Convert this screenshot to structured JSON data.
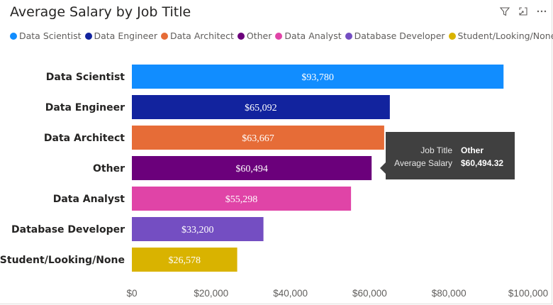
{
  "title": "Average Salary by Job Title",
  "toolbar": {
    "icons": [
      "filter-icon",
      "focus-mode-icon",
      "more-options-icon"
    ]
  },
  "legend": [
    {
      "label": "Data Scientist",
      "color": "#118DFF"
    },
    {
      "label": "Data Engineer",
      "color": "#12239E"
    },
    {
      "label": "Data Architect",
      "color": "#E66C37"
    },
    {
      "label": "Other",
      "color": "#6B007B"
    },
    {
      "label": "Data Analyst",
      "color": "#E044A7"
    },
    {
      "label": "Database Developer",
      "color": "#744EC2"
    },
    {
      "label": "Student/Looking/None",
      "color": "#D9B300"
    }
  ],
  "chart_data": {
    "type": "bar",
    "orientation": "horizontal",
    "title": "Average Salary by Job Title",
    "categories": [
      "Data Scientist",
      "Data Engineer",
      "Data Architect",
      "Other",
      "Data Analyst",
      "Database Developer",
      "Student/Looking/None"
    ],
    "values": [
      93780,
      65092,
      63667,
      60494,
      55298,
      33200,
      26578
    ],
    "data_labels": [
      "$93,780",
      "$65,092",
      "$63,667",
      "$60,494",
      "$55,298",
      "$33,200",
      "$26,578"
    ],
    "colors": [
      "#118DFF",
      "#12239E",
      "#E66C37",
      "#6B007B",
      "#E044A7",
      "#744EC2",
      "#D9B300"
    ],
    "xlim": [
      0,
      100000
    ],
    "x_ticks": [
      0,
      20000,
      40000,
      60000,
      80000,
      100000
    ],
    "x_tick_labels": [
      "$0",
      "$20,000",
      "$40,000",
      "$60,000",
      "$80,000",
      "$100,000"
    ],
    "grid": false,
    "legend_position": "top-left"
  },
  "tooltip": {
    "rows": [
      {
        "label": "Job Title",
        "value": "Other"
      },
      {
        "label": "Average Salary",
        "value": "$60,494.32"
      }
    ]
  }
}
